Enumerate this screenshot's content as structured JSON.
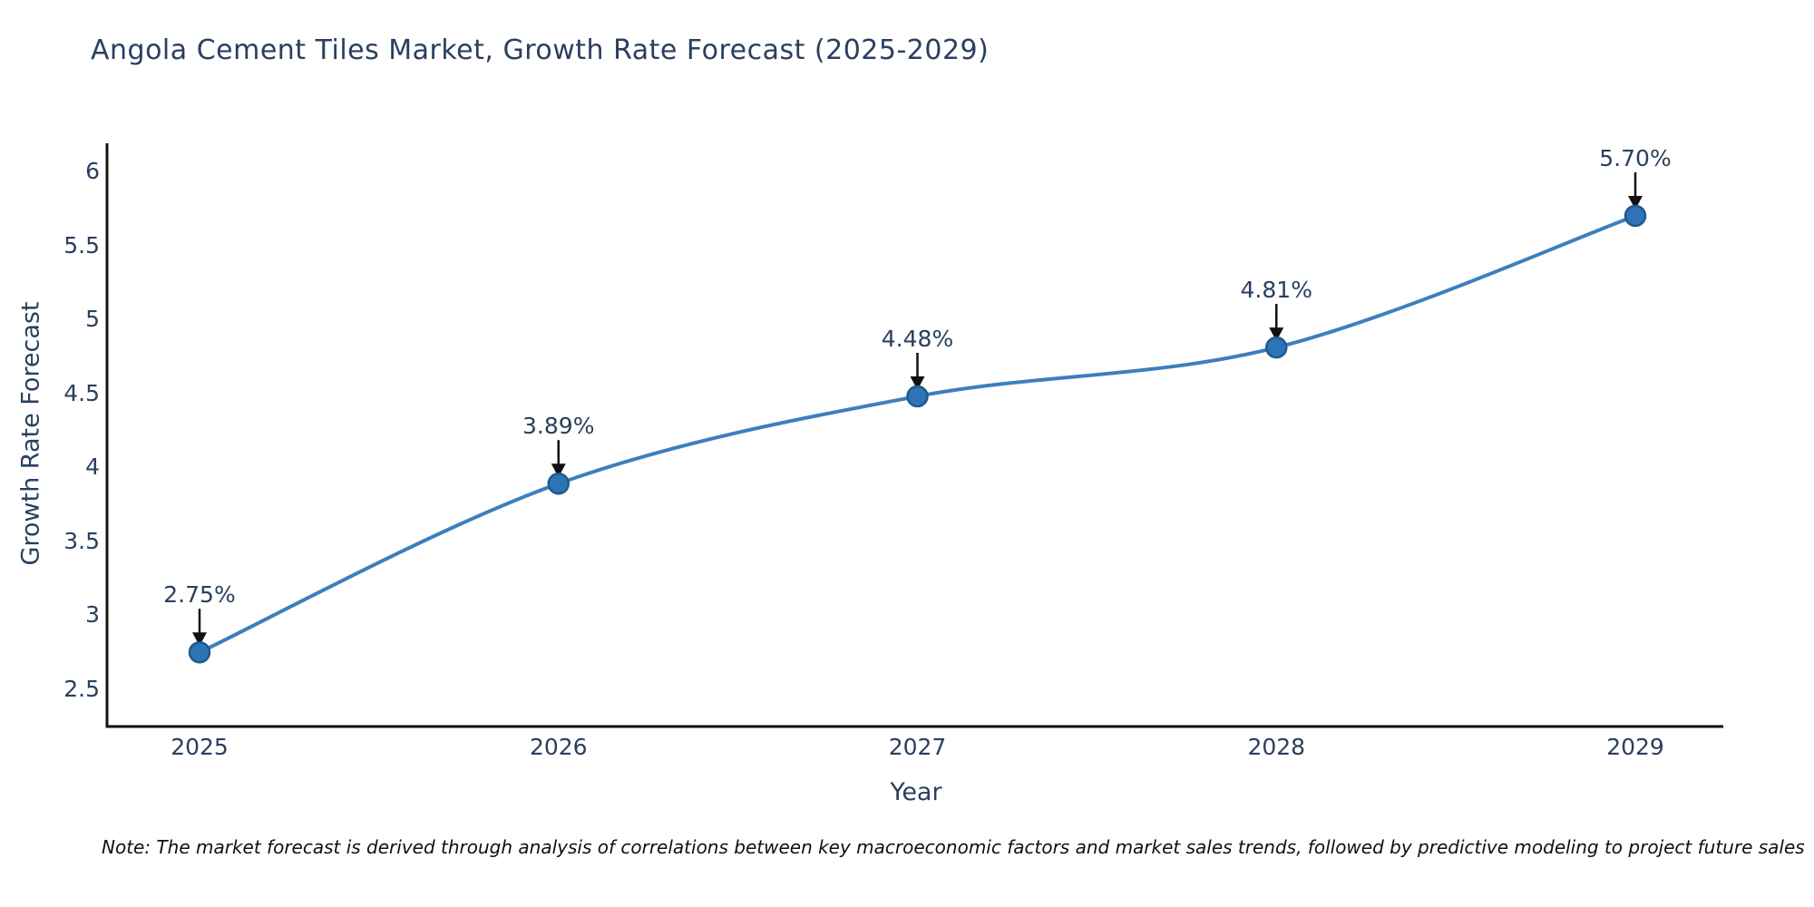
{
  "note": "Note: The market forecast is derived through analysis of correlations between key macroeconomic factors and market sales trends, followed by predictive modeling to project future sales",
  "chart_data": {
    "type": "line",
    "title": "Angola Cement Tiles Market, Growth Rate Forecast (2025-2029)",
    "xlabel": "Year",
    "ylabel": "Growth Rate Forecast",
    "x": [
      2025,
      2026,
      2027,
      2028,
      2029
    ],
    "y": [
      2.75,
      3.89,
      4.48,
      4.81,
      5.7
    ],
    "point_labels": [
      "2.75%",
      "3.89%",
      "4.48%",
      "4.81%",
      "5.70%"
    ],
    "xticks": [
      2025,
      2026,
      2027,
      2028,
      2029
    ],
    "yticks": [
      2.5,
      3,
      3.5,
      4,
      4.5,
      5,
      5.5,
      6
    ],
    "xlim": [
      2025,
      2029
    ],
    "ylim": [
      2.5,
      6
    ],
    "grid": false,
    "legend": "none",
    "line_color": "#3d7fbd",
    "marker_color": "#2e74b5",
    "marker_edge_color": "#1e5a8e",
    "annotation_arrow_color": "#111111",
    "axis_color": "#111111",
    "text_color": "#2a3f5f"
  }
}
